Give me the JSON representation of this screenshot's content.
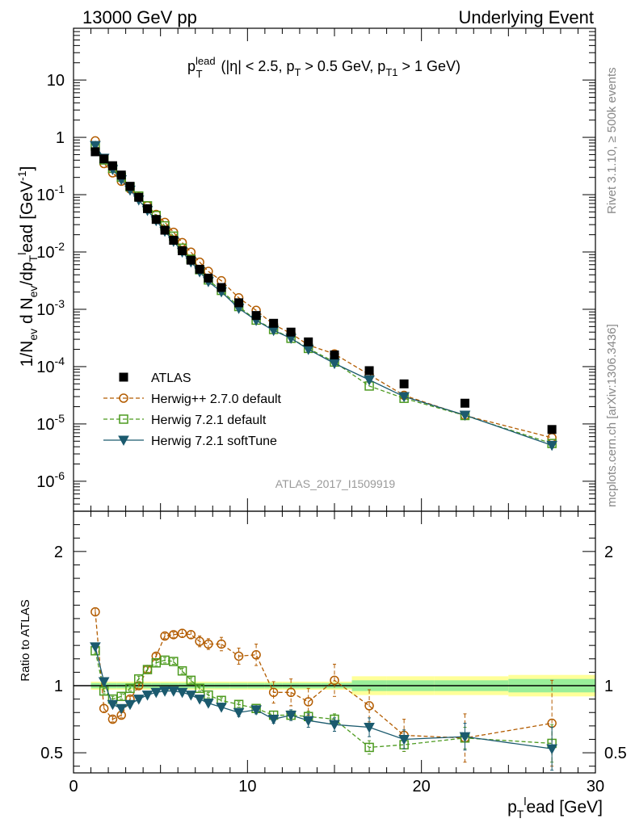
{
  "header": {
    "left": "13000 GeV pp",
    "right": "Underlying Event"
  },
  "side": {
    "rivet": "Rivet 3.1.10, ≥ 500k events",
    "mcplots": "mcplots.cern.ch [arXiv:1306.3436]"
  },
  "title_parts": {
    "p": "p",
    "sup": "lead",
    "sub": "T",
    "rest1": " (|η| < 2.5, p",
    "sub2": "T",
    "rest2": " > 0.5 GeV, p",
    "sub3": "T1",
    "rest3": " > 1 GeV)"
  },
  "analysis_label": "ATLAS_2017_I1509919",
  "ylabel_main": "1/N_ev d N_ev/dp_T^lead [GeV^-1]",
  "ylabel_main_parts": {
    "a": "1/N",
    "b": "ev",
    "c": " d N",
    "d": "ev",
    "e": "/dp",
    "f": "T",
    "g": "l",
    "h": "ead [GeV",
    "i": "-1",
    "j": "]"
  },
  "ylabel_ratio": "Ratio to ATLAS",
  "xlabel_parts": {
    "a": "p",
    "b": "T",
    "c": "l",
    "d": "ead [GeV]"
  },
  "legend": [
    {
      "label": "ATLAS",
      "color": "#000000",
      "marker": "square-filled"
    },
    {
      "label": "Herwig++ 2.7.0 default",
      "color": "#b35c00",
      "marker": "circle-open"
    },
    {
      "label": "Herwig 7.2.1 default",
      "color": "#4c9a1f",
      "marker": "square-open"
    },
    {
      "label": "Herwig 7.2.1 softTune",
      "color": "#1b5a6e",
      "marker": "triangle-down-filled"
    }
  ],
  "chart_data": {
    "type": "scatter",
    "x_range": [
      0,
      30
    ],
    "main_y_range": [
      3e-07,
      80
    ],
    "main_y_scale": "log",
    "ratio_y_range": [
      0.35,
      2.3
    ],
    "x_ticks": [
      0,
      10,
      20,
      30
    ],
    "x_tick_labels": [
      "0",
      "10",
      "20",
      "30"
    ],
    "main_y_ticks": [
      1e-06,
      1e-05,
      0.0001,
      0.001,
      0.01,
      0.1,
      1,
      10
    ],
    "main_y_tick_labels": [
      {
        "m": "10",
        "e": "-6"
      },
      {
        "m": "10",
        "e": "-5"
      },
      {
        "m": "10",
        "e": "-4"
      },
      {
        "m": "10",
        "e": "-3"
      },
      {
        "m": "10",
        "e": "-2"
      },
      {
        "m": "10",
        "e": "-1"
      },
      {
        "m": "1",
        "e": ""
      },
      {
        "m": "10",
        "e": ""
      }
    ],
    "ratio_y_ticks": [
      0.5,
      1,
      2
    ],
    "ratio_y_tick_labels": [
      "0.5",
      "1",
      "2"
    ],
    "x": [
      1.25,
      1.75,
      2.25,
      2.75,
      3.25,
      3.75,
      4.25,
      4.75,
      5.25,
      5.75,
      6.25,
      6.75,
      7.25,
      7.75,
      8.5,
      9.5,
      10.5,
      11.5,
      12.5,
      13.5,
      15.0,
      17.0,
      19.0,
      22.5,
      27.5
    ],
    "atlas": {
      "name": "ATLAS",
      "values": [
        0.56,
        0.42,
        0.32,
        0.22,
        0.14,
        0.09,
        0.057,
        0.037,
        0.024,
        0.016,
        0.0105,
        0.0072,
        0.005,
        0.0035,
        0.0024,
        0.0013,
        0.00078,
        0.00057,
        0.0004,
        0.00027,
        0.00016,
        8.5e-05,
        5e-05,
        2.3e-05,
        8e-06
      ],
      "band_stat_half": [
        0.02,
        0.02,
        0.02,
        0.02,
        0.02,
        0.02,
        0.02,
        0.02,
        0.02,
        0.02,
        0.02,
        0.02,
        0.02,
        0.02,
        0.02,
        0.02,
        0.02,
        0.02,
        0.02,
        0.02,
        0.02,
        0.04,
        0.04,
        0.04,
        0.05
      ],
      "band_tot_half": [
        0.03,
        0.03,
        0.03,
        0.03,
        0.03,
        0.03,
        0.03,
        0.03,
        0.03,
        0.03,
        0.03,
        0.03,
        0.03,
        0.03,
        0.03,
        0.03,
        0.03,
        0.03,
        0.03,
        0.03,
        0.03,
        0.07,
        0.07,
        0.07,
        0.08
      ]
    },
    "series": [
      {
        "name": "Herwig++ 2.7.0 default",
        "ratio": [
          1.55,
          0.83,
          0.75,
          0.78,
          0.9,
          1.0,
          1.12,
          1.22,
          1.37,
          1.38,
          1.39,
          1.38,
          1.33,
          1.31,
          1.31,
          1.22,
          1.23,
          0.95,
          0.95,
          0.88,
          1.04,
          0.85,
          0.63,
          0.61,
          0.72
        ],
        "ratio_err": [
          0.03,
          0.03,
          0.02,
          0.02,
          0.02,
          0.02,
          0.02,
          0.02,
          0.02,
          0.02,
          0.03,
          0.03,
          0.04,
          0.04,
          0.05,
          0.06,
          0.08,
          0.08,
          0.1,
          0.1,
          0.12,
          0.12,
          0.12,
          0.18,
          0.32
        ]
      },
      {
        "name": "Herwig 7.2.1 default",
        "ratio": [
          1.26,
          0.96,
          0.9,
          0.92,
          0.98,
          1.05,
          1.12,
          1.17,
          1.19,
          1.18,
          1.11,
          1.04,
          0.98,
          0.93,
          0.89,
          0.86,
          0.83,
          0.78,
          0.78,
          0.77,
          0.75,
          0.54,
          0.56,
          0.61,
          0.57
        ],
        "ratio_err": [
          0.02,
          0.02,
          0.02,
          0.02,
          0.02,
          0.02,
          0.02,
          0.02,
          0.02,
          0.02,
          0.02,
          0.02,
          0.02,
          0.02,
          0.02,
          0.02,
          0.03,
          0.03,
          0.03,
          0.04,
          0.04,
          0.05,
          0.05,
          0.08,
          0.14
        ]
      },
      {
        "name": "Herwig 7.2.1 softTune",
        "ratio": [
          1.29,
          1.03,
          0.86,
          0.83,
          0.86,
          0.9,
          0.93,
          0.95,
          0.96,
          0.96,
          0.95,
          0.93,
          0.9,
          0.87,
          0.84,
          0.8,
          0.82,
          0.75,
          0.78,
          0.74,
          0.71,
          0.69,
          0.6,
          0.62,
          0.53
        ],
        "ratio_err": [
          0.02,
          0.02,
          0.02,
          0.02,
          0.02,
          0.02,
          0.02,
          0.02,
          0.02,
          0.02,
          0.02,
          0.02,
          0.02,
          0.02,
          0.02,
          0.03,
          0.03,
          0.03,
          0.04,
          0.05,
          0.05,
          0.07,
          0.07,
          0.1,
          0.16
        ]
      }
    ]
  }
}
